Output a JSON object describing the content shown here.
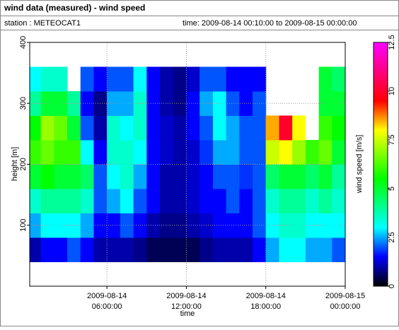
{
  "chart_data": {
    "type": "heatmap",
    "title": "wind data (measured) - wind speed",
    "station": "station : METEOCAT1",
    "period": "time: 2009-08-14 00:10:00 to 2009-08-15 00:00:00",
    "x_label": "time",
    "y_label": "height [m]",
    "colorbar_label": "wind speed [m/s]",
    "x": [
      0.5,
      1.5,
      2.5,
      3.5,
      4.5,
      5.5,
      6.5,
      7.5,
      8.5,
      9.5,
      10.5,
      11.5,
      12.5,
      13.5,
      14.5,
      15.5,
      16.5,
      17.5,
      18.5,
      19.5,
      20.5,
      21.5,
      22.5,
      23.5
    ],
    "y": [
      60,
      100,
      140,
      180,
      220,
      260,
      300,
      340
    ],
    "values": [
      [
        1,
        2.5,
        3.5,
        5,
        6,
        5.5,
        4,
        3
      ],
      [
        1.5,
        3,
        4,
        5.5,
        6.5,
        7,
        5,
        3.5
      ],
      [
        1.5,
        3,
        4,
        5,
        6,
        6.5,
        5,
        3.5
      ],
      [
        2,
        3,
        4,
        5,
        6,
        5,
        4,
        null
      ],
      [
        1.5,
        2.5,
        3.5,
        4.5,
        3,
        2,
        1.5,
        2
      ],
      [
        1,
        1.5,
        2,
        2,
        1.5,
        1,
        0.8,
        1.5
      ],
      [
        1,
        1.5,
        2.5,
        3,
        3.5,
        3.5,
        2.5,
        2
      ],
      [
        1,
        2,
        3,
        3.5,
        3.5,
        3,
        2.5,
        2
      ],
      [
        0.8,
        1.5,
        2,
        2.5,
        3,
        3.5,
        3.5,
        3
      ],
      [
        0.5,
        1,
        1.5,
        1.5,
        1.5,
        1.5,
        1.5,
        1.5
      ],
      [
        0.5,
        0.8,
        1,
        1,
        1.2,
        1.2,
        1,
        1
      ],
      [
        0.5,
        0.8,
        1,
        1,
        1,
        1,
        0.8,
        0.8
      ],
      [
        0.5,
        1,
        1.2,
        1.2,
        1.2,
        1.5,
        1.5,
        1.2
      ],
      [
        0.8,
        1.2,
        1.5,
        1.5,
        1.8,
        2,
        2.5,
        2
      ],
      [
        1,
        1.5,
        1.5,
        2,
        2.5,
        3,
        3,
        2
      ],
      [
        1,
        1.5,
        2,
        2,
        2.5,
        2.5,
        2,
        1.5
      ],
      [
        1,
        1.5,
        1.5,
        1.8,
        2,
        2,
        1.5,
        1.5
      ],
      [
        1.5,
        2,
        2,
        2,
        2,
        2,
        2,
        1.5
      ],
      [
        2.5,
        3,
        3.5,
        4.5,
        7.5,
        8.5,
        null,
        null
      ],
      [
        3,
        3.5,
        4,
        5,
        8,
        10,
        null,
        null
      ],
      [
        3,
        3.5,
        4,
        5,
        7,
        8,
        null,
        null
      ],
      [
        2.5,
        3,
        3.5,
        4.5,
        6,
        null,
        null,
        null
      ],
      [
        2.5,
        3,
        4,
        5,
        6.5,
        6,
        5,
        5
      ],
      [
        2,
        3,
        3.5,
        4,
        5,
        5.5,
        5,
        4.5
      ]
    ],
    "cell_width": 1,
    "cell_height": 40,
    "xlim": [
      0.1667,
      24
    ],
    "xticks": [
      {
        "value": 6,
        "label": [
          "2009-08-14",
          "06:00:00"
        ]
      },
      {
        "value": 12,
        "label": [
          "2009-08-14",
          "12:00:00"
        ]
      },
      {
        "value": 18,
        "label": [
          "2009-08-14",
          "18:00:00"
        ]
      },
      {
        "value": 24,
        "label": [
          "2009-08-15",
          "00:00:00"
        ]
      }
    ],
    "ylim": [
      0,
      400
    ],
    "yticks": [
      100,
      200,
      300,
      400
    ],
    "clim": [
      0,
      12.5
    ],
    "cticks": [
      0,
      2.5,
      5,
      7.5,
      10,
      12.5
    ],
    "colormap": [
      [
        0,
        "#000000"
      ],
      [
        1.5,
        "#0000ff"
      ],
      [
        3,
        "#00ffff"
      ],
      [
        5.5,
        "#00ff00"
      ],
      [
        8,
        "#ffff00"
      ],
      [
        9.5,
        "#ff0000"
      ],
      [
        12.5,
        "#ff00ff"
      ]
    ],
    "grid": true
  }
}
